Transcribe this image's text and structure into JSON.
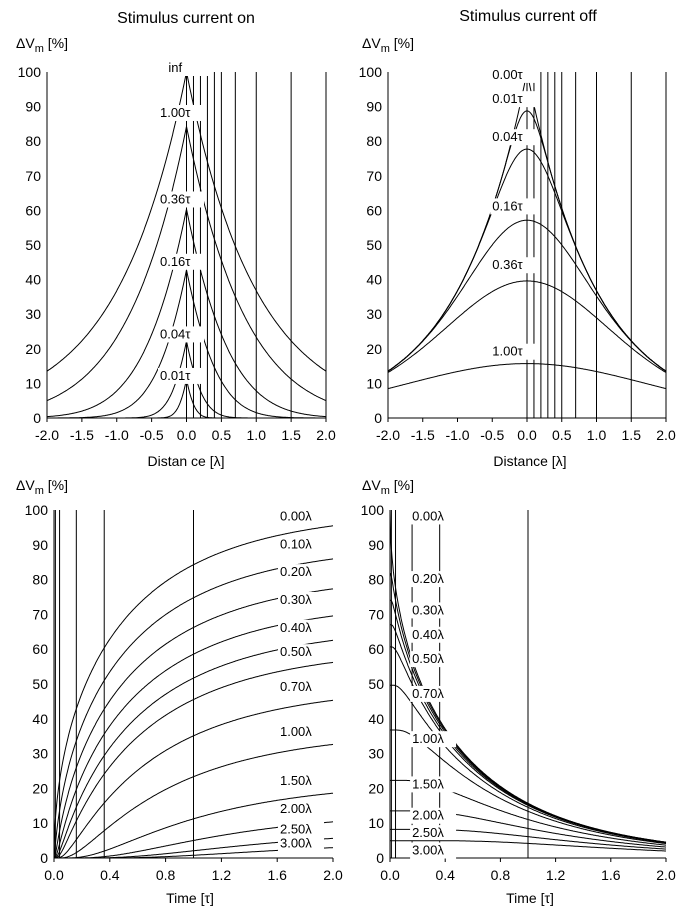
{
  "chart_data": [
    {
      "id": "p1",
      "type": "line",
      "title": "Stimulus current on",
      "ylabel_prefix": "ΔV",
      "ylabel_sub": "m",
      "ylabel_unit": "[%]",
      "xlabel": "Distan ce [λ]",
      "xlim": [
        -2,
        2
      ],
      "ylim": [
        0,
        100
      ],
      "xticks": [
        "-2.0",
        "-1.5",
        "-1.0",
        "-0.5",
        "0.0",
        "0.5",
        "1.0",
        "1.5",
        "2.0"
      ],
      "xtick_values": [
        -2,
        -1.5,
        -1,
        -0.5,
        0,
        0.5,
        1,
        1.5,
        2
      ],
      "yticks": [
        "0",
        "10",
        "20",
        "30",
        "40",
        "50",
        "60",
        "70",
        "80",
        "90",
        "100"
      ],
      "ytick_values": [
        0,
        10,
        20,
        30,
        40,
        50,
        60,
        70,
        80,
        90,
        100
      ],
      "vlines": [
        0,
        0.1,
        0.2,
        0.3,
        0.4,
        0.5,
        0.7,
        1.0,
        1.5,
        2.0
      ],
      "series": [
        {
          "name": "inf",
          "label": "inf",
          "params": [
            null
          ],
          "label_x": -0.26,
          "label_y": 100
        },
        {
          "name": "1.00τ",
          "label": "1.00τ",
          "params": [
            1.0
          ],
          "label_x": -0.38,
          "label_y": 87
        },
        {
          "name": "0.36τ",
          "label": "0.36τ",
          "params": [
            0.36
          ],
          "label_x": -0.38,
          "label_y": 62
        },
        {
          "name": "0.16τ",
          "label": "0.16τ",
          "params": [
            0.16
          ],
          "label_x": -0.38,
          "label_y": 44
        },
        {
          "name": "0.04τ",
          "label": "0.04τ",
          "params": [
            0.04
          ],
          "label_x": -0.38,
          "label_y": 23
        },
        {
          "name": "0.01τ",
          "label": "0.01τ",
          "params": [
            0.01
          ],
          "label_x": -0.38,
          "label_y": 11
        }
      ]
    },
    {
      "id": "p2",
      "type": "line",
      "title": "Stimulus current off",
      "ylabel_prefix": "ΔV",
      "ylabel_sub": "m",
      "ylabel_unit": "[%]",
      "xlabel": "Distance [λ]",
      "xlim": [
        -2,
        2
      ],
      "ylim": [
        0,
        100
      ],
      "xticks": [
        "-2.0",
        "-1.5",
        "-1.0",
        "-0.5",
        "0.0",
        "0.5",
        "1.0",
        "1.5",
        "2.0"
      ],
      "xtick_values": [
        -2,
        -1.5,
        -1,
        -0.5,
        0,
        0.5,
        1,
        1.5,
        2
      ],
      "yticks": [
        "0",
        "10",
        "20",
        "30",
        "40",
        "50",
        "60",
        "70",
        "80",
        "90",
        "100"
      ],
      "ytick_values": [
        0,
        10,
        20,
        30,
        40,
        50,
        60,
        70,
        80,
        90,
        100
      ],
      "vlines": [
        0,
        0.1,
        0.2,
        0.3,
        0.4,
        0.5,
        0.7,
        1.0,
        1.5,
        2.0
      ],
      "series": [
        {
          "name": "0.00τ",
          "label": "0.00τ",
          "params": [
            0.0
          ],
          "label_x": -0.5,
          "label_y": 98
        },
        {
          "name": "0.01τ",
          "label": "0.01τ",
          "params": [
            0.01
          ],
          "label_x": -0.5,
          "label_y": 91
        },
        {
          "name": "0.04τ",
          "label": "0.04τ",
          "params": [
            0.04
          ],
          "label_x": -0.5,
          "label_y": 80
        },
        {
          "name": "0.16τ",
          "label": "0.16τ",
          "params": [
            0.16
          ],
          "label_x": -0.5,
          "label_y": 60
        },
        {
          "name": "0.36τ",
          "label": "0.36τ",
          "params": [
            0.36
          ],
          "label_x": -0.5,
          "label_y": 43
        },
        {
          "name": "1.00τ",
          "label": "1.00τ",
          "params": [
            1.0
          ],
          "label_x": -0.5,
          "label_y": 18
        }
      ]
    },
    {
      "id": "p3",
      "type": "line",
      "title": "",
      "ylabel_prefix": "ΔV",
      "ylabel_sub": "m",
      "ylabel_unit": "[%]",
      "xlabel": "Time [τ]",
      "xlim": [
        0,
        2
      ],
      "ylim": [
        0,
        100
      ],
      "xticks": [
        "0.0",
        "0.4",
        "0.8",
        "1.2",
        "1.6",
        "2.0"
      ],
      "xtick_values": [
        0,
        0.4,
        0.8,
        1.2,
        1.6,
        2.0
      ],
      "yticks": [
        "0",
        "10",
        "20",
        "30",
        "40",
        "50",
        "60",
        "70",
        "80",
        "90",
        "100"
      ],
      "ytick_values": [
        0,
        10,
        20,
        30,
        40,
        50,
        60,
        70,
        80,
        90,
        100
      ],
      "vlines": [
        0.01,
        0.04,
        0.16,
        0.36,
        1.0
      ],
      "series": [
        {
          "name": "0.00λ",
          "label": "0.00λ",
          "params": [
            0.0
          ],
          "label_x": 1.62,
          "label_y": 97
        },
        {
          "name": "0.10λ",
          "label": "0.10λ",
          "params": [
            0.1
          ],
          "label_x": 1.62,
          "label_y": 89
        },
        {
          "name": "0.20λ",
          "label": "0.20λ",
          "params": [
            0.2
          ],
          "label_x": 1.62,
          "label_y": 81
        },
        {
          "name": "0.30λ",
          "label": "0.30λ",
          "params": [
            0.3
          ],
          "label_x": 1.62,
          "label_y": 73
        },
        {
          "name": "0.40λ",
          "label": "0.40λ",
          "params": [
            0.4
          ],
          "label_x": 1.62,
          "label_y": 65
        },
        {
          "name": "0.50λ",
          "label": "0.50λ",
          "params": [
            0.5
          ],
          "label_x": 1.62,
          "label_y": 58
        },
        {
          "name": "0.70λ",
          "label": "0.70λ",
          "params": [
            0.7
          ],
          "label_x": 1.62,
          "label_y": 48
        },
        {
          "name": "1.00λ",
          "label": "1.00λ",
          "params": [
            1.0
          ],
          "label_x": 1.62,
          "label_y": 35
        },
        {
          "name": "1.50λ",
          "label": "1.50λ",
          "params": [
            1.5
          ],
          "label_x": 1.62,
          "label_y": 21
        },
        {
          "name": "2.00λ",
          "label": "2.00λ",
          "params": [
            2.0
          ],
          "label_x": 1.62,
          "label_y": 13
        },
        {
          "name": "2.50λ",
          "label": "2.50λ",
          "params": [
            2.5
          ],
          "label_x": 1.62,
          "label_y": 7
        },
        {
          "name": "3.00λ",
          "label": "3.00λ",
          "params": [
            3.0
          ],
          "label_x": 1.62,
          "label_y": 3
        }
      ]
    },
    {
      "id": "p4",
      "type": "line",
      "title": "",
      "ylabel_prefix": "ΔV",
      "ylabel_sub": "m",
      "ylabel_unit": "[%]",
      "xlabel": "Time [τ]",
      "xlim": [
        0,
        2
      ],
      "ylim": [
        0,
        100
      ],
      "xticks": [
        "0.0",
        "0.4",
        "0.8",
        "1.2",
        "1.6",
        "2.0"
      ],
      "xtick_values": [
        0,
        0.4,
        0.8,
        1.2,
        1.6,
        2.0
      ],
      "yticks": [
        "0",
        "10",
        "20",
        "30",
        "40",
        "50",
        "60",
        "70",
        "80",
        "90",
        "100"
      ],
      "ytick_values": [
        0,
        10,
        20,
        30,
        40,
        50,
        60,
        70,
        80,
        90,
        100
      ],
      "vlines": [
        0.01,
        0.04,
        0.16,
        0.36,
        1.0
      ],
      "series": [
        {
          "name": "0.00λ",
          "label": "0.00λ",
          "params": [
            0.0
          ],
          "label_x": 0.16,
          "label_y": 97
        },
        {
          "name": "0.20λ",
          "label": "0.20λ",
          "params": [
            0.2
          ],
          "label_x": 0.16,
          "label_y": 79
        },
        {
          "name": "0.30λ",
          "label": "0.30λ",
          "params": [
            0.3
          ],
          "label_x": 0.16,
          "label_y": 70
        },
        {
          "name": "0.40λ",
          "label": "0.40λ",
          "params": [
            0.4
          ],
          "label_x": 0.16,
          "label_y": 63
        },
        {
          "name": "0.50λ",
          "label": "0.50λ",
          "params": [
            0.5
          ],
          "label_x": 0.16,
          "label_y": 56
        },
        {
          "name": "0.70λ",
          "label": "0.70λ",
          "params": [
            0.7
          ],
          "label_x": 0.16,
          "label_y": 46
        },
        {
          "name": "1.00λ",
          "label": "1.00λ",
          "params": [
            1.0
          ],
          "label_x": 0.16,
          "label_y": 33
        },
        {
          "name": "1.50λ",
          "label": "1.50λ",
          "params": [
            1.5
          ],
          "label_x": 0.16,
          "label_y": 20
        },
        {
          "name": "2.00λ",
          "label": "2.00λ",
          "params": [
            2.0
          ],
          "label_x": 0.16,
          "label_y": 11
        },
        {
          "name": "2.50λ",
          "label": "2.50λ",
          "params": [
            2.5
          ],
          "label_x": 0.16,
          "label_y": 6
        },
        {
          "name": "3.00λ",
          "label": "3.00λ",
          "params": [
            3.0
          ],
          "label_x": 0.16,
          "label_y": 1
        }
      ]
    }
  ]
}
